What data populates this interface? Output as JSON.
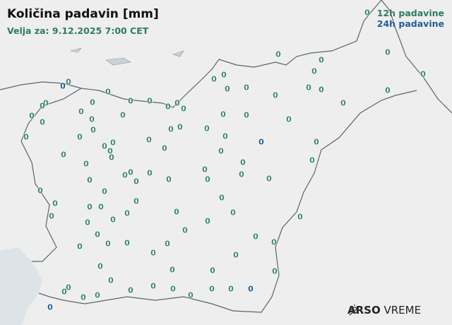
{
  "header": {
    "title": "Količina padavin [mm]",
    "valid_for": "Velja za: 9.12.2025 7:00 CET"
  },
  "legend": {
    "items": [
      {
        "label": "12h padavine",
        "color": "#2e7d5b"
      },
      {
        "label": "24h padavine",
        "color": "#1f5f94"
      }
    ]
  },
  "colors": {
    "h12": "#3c8a66",
    "h24": "#1f5f94",
    "border": "#5a6470",
    "sea": "#dde4e8",
    "land": "#eeeeee"
  },
  "stations_12h": [
    "0",
    "0",
    "0",
    "0",
    "0",
    "0",
    "0",
    "0",
    "0",
    "0",
    "0",
    "0",
    "0",
    "0",
    "0",
    "0",
    "0",
    "0",
    "0",
    "0",
    "0",
    "0",
    "0",
    "0",
    "0",
    "0",
    "0",
    "0",
    "0",
    "0",
    "0",
    "0",
    "0",
    "0",
    "0",
    "0",
    "0",
    "0",
    "0",
    "0",
    "0",
    "0",
    "0",
    "0",
    "0",
    "0",
    "0",
    "0",
    "0",
    "0",
    "0",
    "0",
    "0",
    "0",
    "0",
    "0",
    "0",
    "0",
    "0",
    "0",
    "0",
    "0",
    "0",
    "0",
    "0",
    "0",
    "0",
    "0",
    "0",
    "0",
    "0",
    "0",
    "0",
    "0",
    "0",
    "0",
    "0",
    "0",
    "0",
    "0",
    "0",
    "0",
    "0",
    "0",
    "0",
    "0",
    "0",
    "0",
    "0",
    "0",
    "0",
    "0",
    "0",
    "0",
    "0",
    "0",
    "0",
    "0",
    "0",
    "0",
    "0",
    "0"
  ],
  "stations_24h": [
    "0",
    "0",
    "0",
    "0"
  ],
  "logo": {
    "icon": "sun-cloud-icon",
    "brand": "ARSO",
    "product": "VREME"
  }
}
